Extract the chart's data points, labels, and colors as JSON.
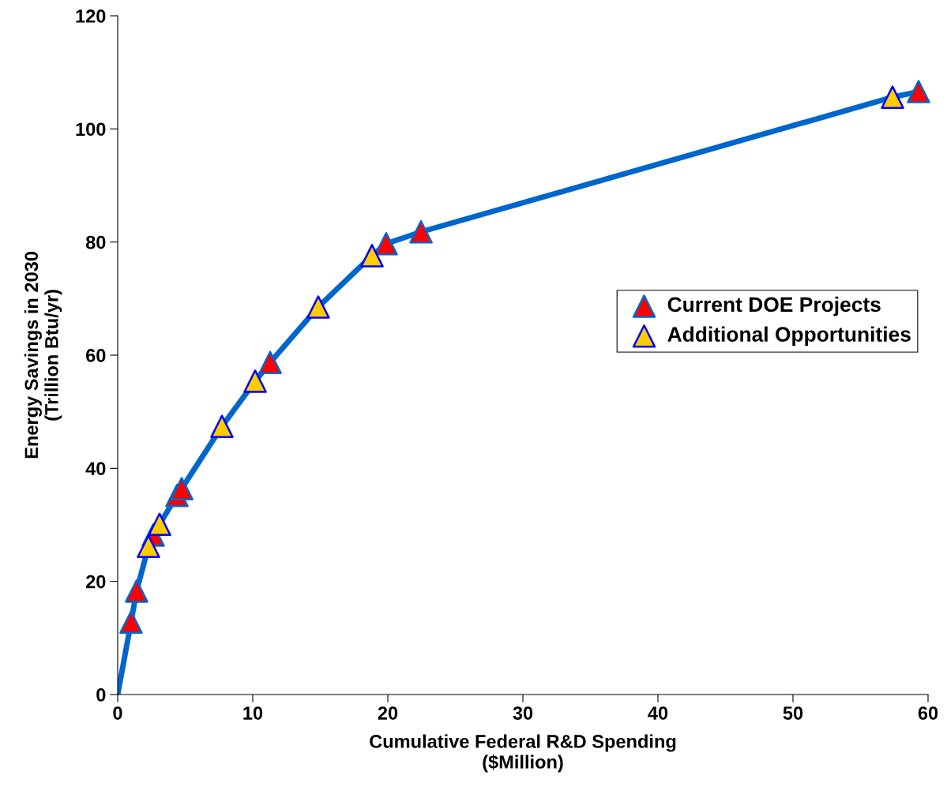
{
  "chart_data": {
    "type": "line",
    "xlabel": "Cumulative Federal R&D Spending\n($Million)",
    "ylabel": "Energy Savings in 2030\n(Trillion Btu/yr)",
    "xlim": [
      0,
      60
    ],
    "xticks": [
      0,
      10,
      20,
      30,
      40,
      50,
      60
    ],
    "ylim": [
      0,
      120
    ],
    "yticks": [
      0,
      20,
      40,
      60,
      80,
      100,
      120
    ],
    "grid": false,
    "legend": "right",
    "series": [
      {
        "color": "#0066cc",
        "marker": "none",
        "x": [
          0,
          0.99,
          1.4,
          2.28,
          2.63,
          3.1,
          4.39,
          4.74,
          7.72,
          10.18,
          11.29,
          14.85,
          18.83,
          19.88,
          22.46,
          57.37,
          59.3
        ],
        "values": [
          0,
          12.8,
          18.3,
          26.2,
          28.2,
          30.1,
          35.2,
          36.4,
          47.4,
          55.4,
          58.7,
          68.5,
          77.6,
          79.7,
          81.8,
          105.6,
          106.6
        ]
      },
      {
        "type": "scatter",
        "name": "Current DOE Projects",
        "color": "#ff0000",
        "marker": "triangle",
        "x": [
          0.99,
          1.4,
          2.63,
          4.39,
          4.74,
          11.29,
          19.88,
          22.46,
          59.3
        ],
        "values": [
          12.8,
          18.3,
          28.2,
          35.2,
          36.4,
          58.7,
          79.7,
          81.8,
          106.6
        ]
      },
      {
        "type": "scatter",
        "name": "Additional Opportunities",
        "color": "#ffcc00",
        "marker": "triangle",
        "x": [
          2.28,
          3.1,
          7.72,
          10.18,
          14.85,
          18.83,
          57.37
        ],
        "values": [
          26.2,
          30.1,
          47.4,
          55.4,
          68.5,
          77.6,
          105.6
        ]
      }
    ]
  }
}
